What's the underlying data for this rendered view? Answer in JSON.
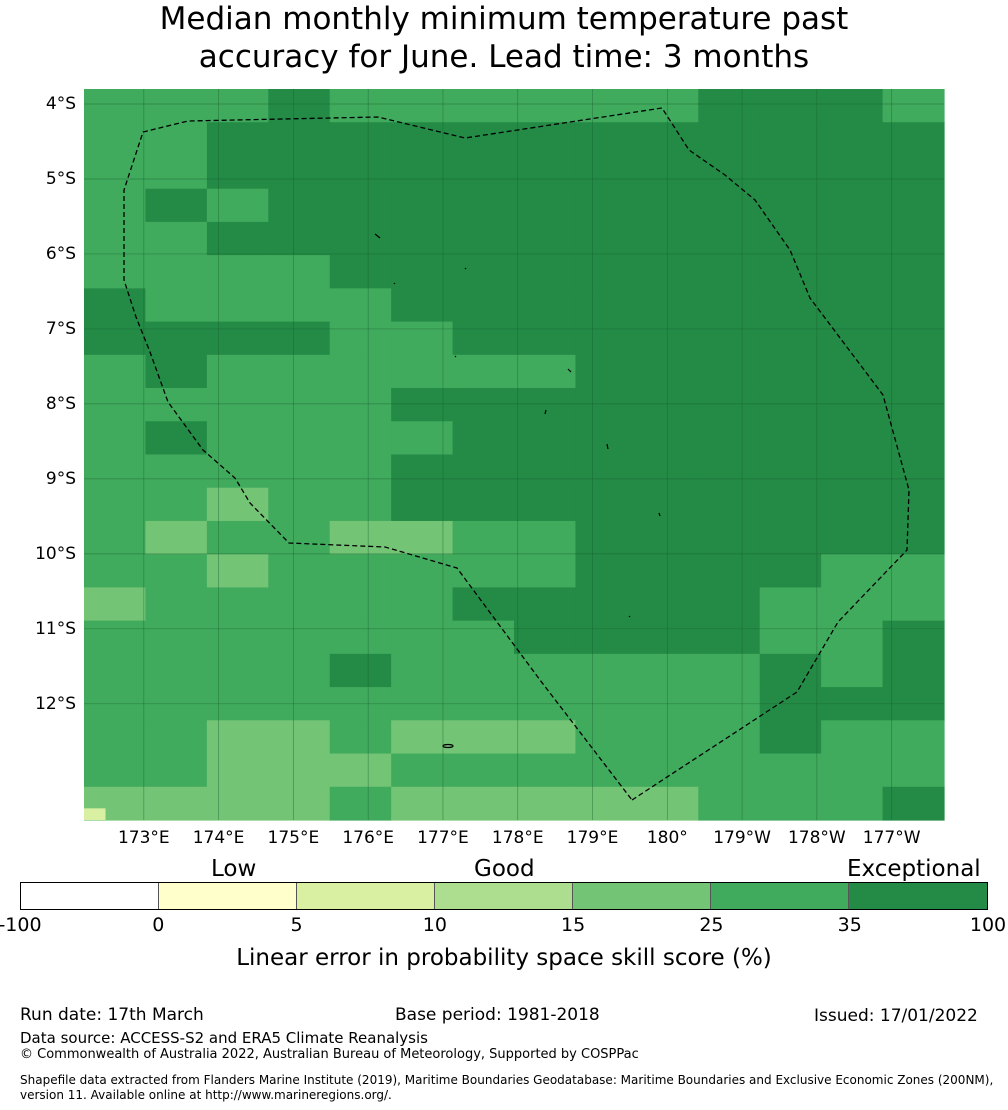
{
  "title": {
    "line1": "Median monthly minimum temperature past",
    "line2": "accuracy for June. Lead time: 3 months"
  },
  "map": {
    "lat_labels": [
      "4°S",
      "5°S",
      "6°S",
      "7°S",
      "8°S",
      "9°S",
      "10°S",
      "11°S",
      "12°S"
    ],
    "lat_values": [
      4,
      5,
      6,
      7,
      8,
      9,
      10,
      11,
      12
    ],
    "lon_labels": [
      "173°E",
      "174°E",
      "175°E",
      "176°E",
      "177°E",
      "178°E",
      "179°E",
      "180°",
      "179°W",
      "178°W",
      "177°W"
    ],
    "lon_values": [
      173,
      174,
      175,
      176,
      177,
      178,
      179,
      180,
      181,
      182,
      183
    ],
    "extent": {
      "lon_min": 172.2,
      "lon_max": 183.7,
      "lat_top": 3.8,
      "lat_bottom": 13.55
    },
    "grid": {
      "columns": 14,
      "legend": "a:15-25 b:25-35 c:35-100 d:5-10",
      "rows": [
        "bbbcbbbbbbcccb",
        "bbcccccccccccc",
        "bbcccccccccccc",
        "bcbccccccccccc",
        "bbcccccccccccc",
        "bbbbcccccccccc",
        "cbbbbccccccccc",
        "ccccbbcccccccc",
        "bcbbbbbbcccccc",
        "bbbbbccccccccc",
        "bcbbbbcccccccc",
        "bbbbbccccccccc",
        "bbabbccccccccc",
        "babbaabbcccccc",
        "bbabbbbbccccbb",
        "abbbbbcccccbbb",
        "bbbbbbbccccbbc",
        "bbbbcbbbbbbcbc",
        "bbbbbbbbbbbccc",
        "bbaabaaabbbcbb",
        "bbaaabbbbbbbbb",
        "aaaabaaaaabbbc"
      ]
    },
    "colors": {
      "a": "#74c476",
      "b": "#41ab5d",
      "c": "#238b45",
      "d": "#d9f0a3"
    },
    "corner_cell": "d"
  },
  "legend": {
    "category_labels": [
      "Low",
      "Good",
      "Exceptional"
    ],
    "segments": [
      {
        "color": "#ffffff"
      },
      {
        "color": "#ffffcc"
      },
      {
        "color": "#d9f0a3"
      },
      {
        "color": "#addd8e"
      },
      {
        "color": "#74c476"
      },
      {
        "color": "#41ab5d"
      },
      {
        "color": "#238b45"
      }
    ],
    "tick_labels": [
      "-100",
      "0",
      "5",
      "10",
      "15",
      "25",
      "35",
      "100"
    ],
    "title": "Linear error in probability space skill score (%)"
  },
  "footer": {
    "run_date": "Run date: 17th March",
    "base_period": "Base period: 1981-2018",
    "issued": "Issued: 17/01/2022",
    "data_source": "Data source: ACCESS-S2 and ERA5 Climate Reanalysis",
    "copyright": "© Commonwealth of Australia 2022, Australian Bureau of Meteorology, Supported by COSPPac",
    "shapefile_line1": "Shapefile data extracted from Flanders Marine Institute (2019), Maritime Boundaries Geodatabase: Maritime Boundaries and Exclusive Economic Zones (200NM),",
    "shapefile_line2": "version 11. Available online at http://www.marineregions.org/."
  }
}
